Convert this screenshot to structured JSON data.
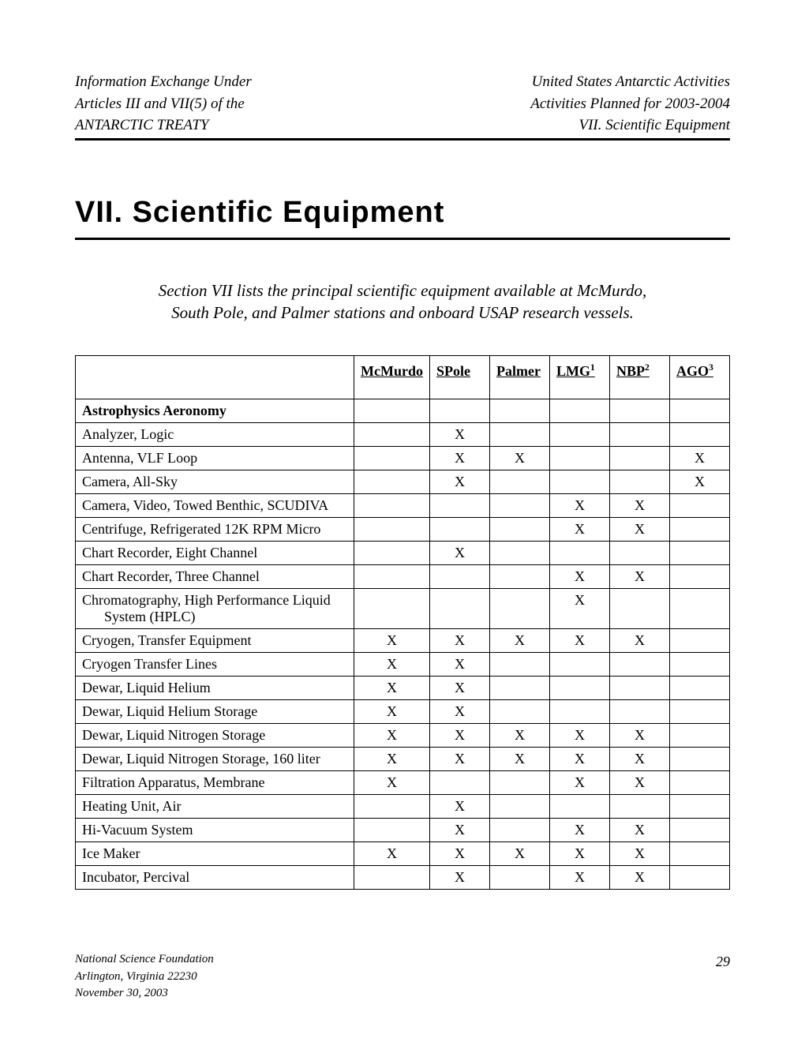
{
  "header": {
    "left_line1": "Information Exchange Under",
    "left_line2": "Articles III and VII(5) of the",
    "left_line3": "ANTARCTIC TREATY",
    "right_line1": "United States Antarctic Activities",
    "right_line2": "Activities Planned for 2003-2004",
    "right_line3": "VII.  Scientific Equipment"
  },
  "title": "VII.  Scientific Equipment",
  "intro": "Section VII lists the principal scientific equipment available at McMurdo, South Pole, and Palmer stations and onboard USAP research vessels.",
  "table": {
    "columns": [
      "McMurdo",
      "SPole",
      "Palmer",
      "LMG",
      "NBP",
      "AGO"
    ],
    "column_super": [
      "",
      "",
      "",
      "1",
      "2",
      "3"
    ],
    "section_label": "Astrophysics Aeronomy",
    "rows": [
      {
        "name": "Analyzer, Logic",
        "x": [
          "",
          "X",
          "",
          "",
          "",
          ""
        ]
      },
      {
        "name": "Antenna, VLF Loop",
        "x": [
          "",
          "X",
          "X",
          "",
          "",
          "X"
        ]
      },
      {
        "name": "Camera, All-Sky",
        "x": [
          "",
          "X",
          "",
          "",
          "",
          "X"
        ]
      },
      {
        "name": "Camera, Video, Towed Benthic, SCUDIVA",
        "x": [
          "",
          "",
          "",
          "X",
          "X",
          ""
        ]
      },
      {
        "name": "Centrifuge, Refrigerated 12K RPM Micro",
        "x": [
          "",
          "",
          "",
          "X",
          "X",
          ""
        ]
      },
      {
        "name": "Chart Recorder, Eight Channel",
        "x": [
          "",
          "X",
          "",
          "",
          "",
          ""
        ]
      },
      {
        "name": "Chart Recorder, Three Channel",
        "x": [
          "",
          "",
          "",
          "X",
          "X",
          ""
        ]
      },
      {
        "name": "Chromatography, High Performance Liquid",
        "name2": "System (HPLC)",
        "x": [
          "",
          "",
          "",
          "X",
          "",
          ""
        ]
      },
      {
        "name": "Cryogen, Transfer Equipment",
        "x": [
          "X",
          "X",
          "X",
          "X",
          "X",
          ""
        ]
      },
      {
        "name": "Cryogen Transfer Lines",
        "x": [
          "X",
          "X",
          "",
          "",
          "",
          ""
        ]
      },
      {
        "name": "Dewar, Liquid Helium",
        "x": [
          "X",
          "X",
          "",
          "",
          "",
          ""
        ]
      },
      {
        "name": "Dewar, Liquid Helium Storage",
        "x": [
          "X",
          "X",
          "",
          "",
          "",
          ""
        ]
      },
      {
        "name": "Dewar, Liquid Nitrogen Storage",
        "x": [
          "X",
          "X",
          "X",
          "X",
          "X",
          ""
        ]
      },
      {
        "name": "Dewar, Liquid Nitrogen Storage, 160 liter",
        "x": [
          "X",
          "X",
          "X",
          "X",
          "X",
          ""
        ]
      },
      {
        "name": "Filtration Apparatus, Membrane",
        "x": [
          "X",
          "",
          "",
          "X",
          "X",
          ""
        ]
      },
      {
        "name": "Heating Unit, Air",
        "x": [
          "",
          "X",
          "",
          "",
          "",
          ""
        ]
      },
      {
        "name": "Hi-Vacuum System",
        "x": [
          "",
          "X",
          "",
          "X",
          "X",
          ""
        ]
      },
      {
        "name": "Ice Maker",
        "x": [
          "X",
          "X",
          "X",
          "X",
          "X",
          ""
        ]
      },
      {
        "name": "Incubator, Percival",
        "x": [
          "",
          "X",
          "",
          "X",
          "X",
          ""
        ]
      }
    ]
  },
  "footer": {
    "left_line1": "National Science Foundation",
    "left_line2": "Arlington, Virginia  22230",
    "left_line3": "November 30, 2003",
    "page_number": "29"
  }
}
